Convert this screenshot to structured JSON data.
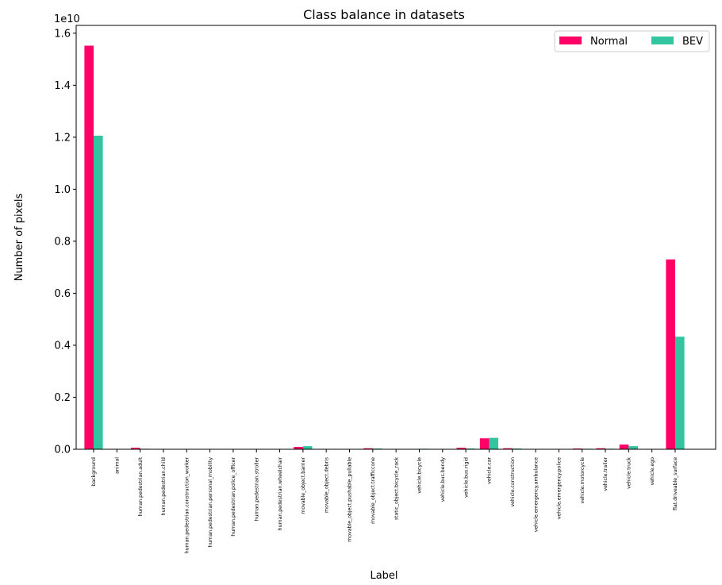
{
  "chart_data": {
    "type": "bar",
    "title": "Class balance in datasets",
    "xlabel": "Label",
    "ylabel": "Number of pixels",
    "y_offset_label": "1e10",
    "ylim": [
      0,
      1.63
    ],
    "yticks": [
      "0.0",
      "0.2",
      "0.4",
      "0.6",
      "0.8",
      "1.0",
      "1.2",
      "1.4",
      "1.6"
    ],
    "ytick_values": [
      0.0,
      0.2,
      0.4,
      0.6,
      0.8,
      1.0,
      1.2,
      1.4,
      1.6
    ],
    "grid": false,
    "legend_position": "top-right",
    "categories": [
      "background",
      "animal",
      "human.pedestrian.adult",
      "human.pedestrian.child",
      "human.pedestrian.construction_worker",
      "human.pedestrian.personal_mobility",
      "human.pedestrian.police_officer",
      "human.pedestrian.stroller",
      "human.pedestrian.wheelchair",
      "movable_object.barrier",
      "movable_object.debris",
      "movable_object.pushable_pullable",
      "movable_object.trafficcone",
      "static_object.bicycle_rack",
      "vehicle.bicycle",
      "vehicle.bus.bendy",
      "vehicle.bus.rigid",
      "vehicle.car",
      "vehicle.construction",
      "vehicle.emergency.ambulance",
      "vehicle.emergency.police",
      "vehicle.motorcycle",
      "vehicle.trailer",
      "vehicle.truck",
      "vehicle.ego",
      "flat.driveable_surface"
    ],
    "series": [
      {
        "name": "Normal",
        "color": "#ff0066",
        "values": [
          1.552,
          0.0,
          0.006,
          0.0,
          0.0,
          0.0,
          0.0,
          0.0,
          0.0,
          0.009,
          0.0,
          0.001,
          0.004,
          0.0,
          0.001,
          0.0,
          0.006,
          0.042,
          0.004,
          0.0,
          0.0,
          0.003,
          0.004,
          0.018,
          0.0,
          0.73
        ]
      },
      {
        "name": "BEV",
        "color": "#33c4a0",
        "values": [
          1.206,
          0.0,
          0.002,
          0.0,
          0.0,
          0.0,
          0.0,
          0.0,
          0.0,
          0.012,
          0.0,
          0.001,
          0.003,
          0.0,
          0.002,
          0.0,
          0.003,
          0.044,
          0.003,
          0.0,
          0.0,
          0.002,
          0.002,
          0.012,
          0.0,
          0.433
        ]
      }
    ]
  }
}
